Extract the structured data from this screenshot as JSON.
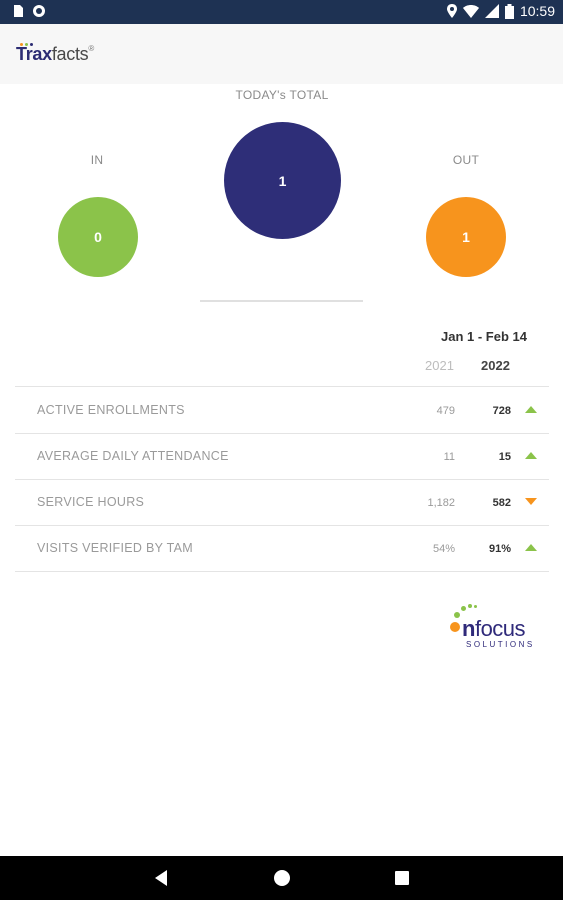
{
  "status_bar": {
    "time": "10:59",
    "icons": [
      "sim-card-icon",
      "sync-icon",
      "location-icon",
      "wifi-icon",
      "signal-icon",
      "battery-icon"
    ]
  },
  "app": {
    "logo_text_bold": "Trax",
    "logo_text": "facts",
    "logo_tm": "®"
  },
  "totals": {
    "today_label": "TODAY's TOTAL",
    "today_value": "1",
    "in_label": "IN",
    "in_value": "0",
    "out_label": "OUT",
    "out_value": "1",
    "colors": {
      "in": "#8bc34a",
      "today": "#2e2e78",
      "out": "#f7941d"
    }
  },
  "stats": {
    "date_range": "Jan 1 - Feb 14",
    "year_prev": "2021",
    "year_curr": "2022",
    "rows": [
      {
        "label": "ACTIVE ENROLLMENTS",
        "prev": "479",
        "curr": "728",
        "trend": "up"
      },
      {
        "label": "AVERAGE DAILY ATTENDANCE",
        "prev": "11",
        "curr": "15",
        "trend": "up"
      },
      {
        "label": "SERVICE HOURS",
        "prev": "1,182",
        "curr": "582",
        "trend": "down"
      },
      {
        "label": "VISITS VERIFIED BY TAM",
        "prev": "54%",
        "curr": "91%",
        "trend": "up"
      }
    ],
    "colors": {
      "up": "#8bc34a",
      "down": "#f7941d"
    }
  },
  "footer_logo": {
    "word_n": "n",
    "word_rest": "focus",
    "tagline": "SOLUTIONS"
  },
  "nav_bar": {
    "icons": [
      "back-icon",
      "home-icon",
      "recents-icon"
    ]
  }
}
